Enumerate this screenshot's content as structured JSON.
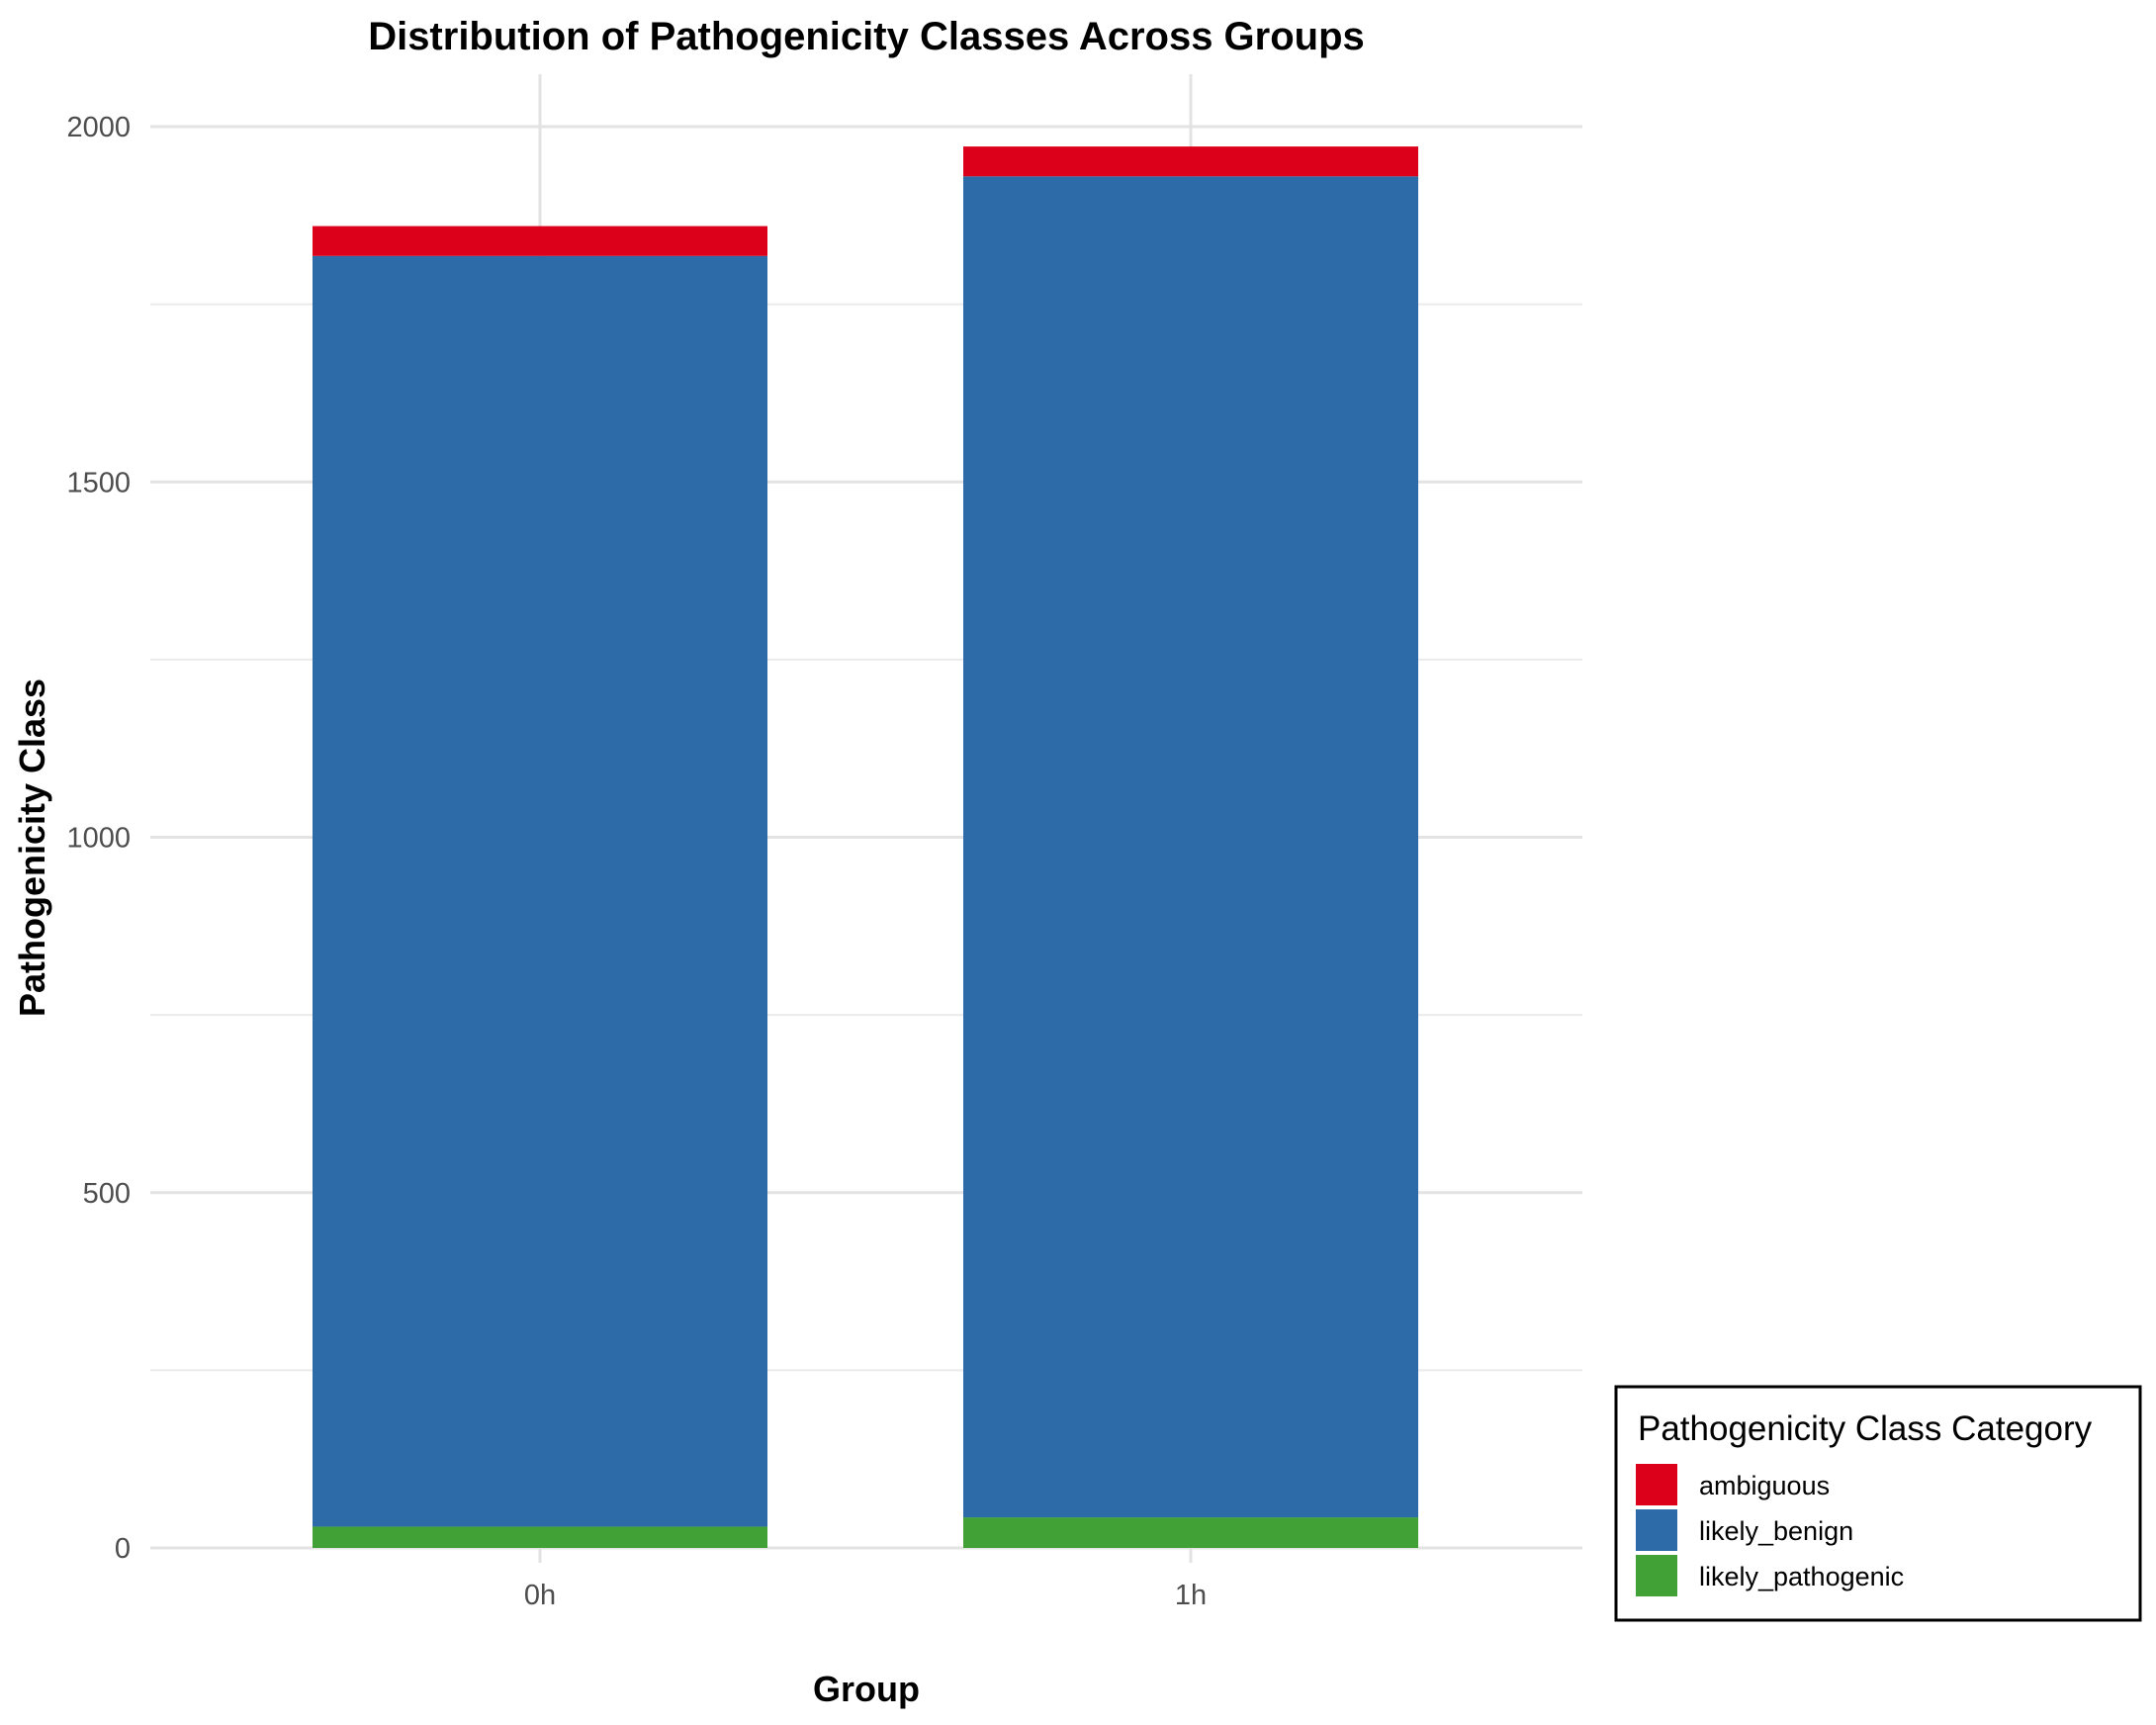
{
  "chart_data": {
    "type": "bar",
    "stacked": true,
    "title": "Distribution of Pathogenicity Classes Across Groups",
    "xlabel": "Group",
    "ylabel": "Pathogenicity Class",
    "categories": [
      "0h",
      "1h"
    ],
    "series": [
      {
        "name": "likely_pathogenic",
        "values": [
          30,
          43
        ],
        "color": "#41a137"
      },
      {
        "name": "likely_benign",
        "values": [
          1788,
          1887
        ],
        "color": "#2d6aa8"
      },
      {
        "name": "ambiguous",
        "values": [
          42,
          42
        ],
        "color": "#dc001a"
      }
    ],
    "ylim": [
      0,
      2050
    ],
    "yticks": [
      0,
      500,
      1000,
      1500,
      2000
    ],
    "grid": true,
    "legend": {
      "title": "Pathogenicity Class Category",
      "position": "bottom-right",
      "entries": [
        "ambiguous",
        "likely_benign",
        "likely_pathogenic"
      ]
    }
  }
}
